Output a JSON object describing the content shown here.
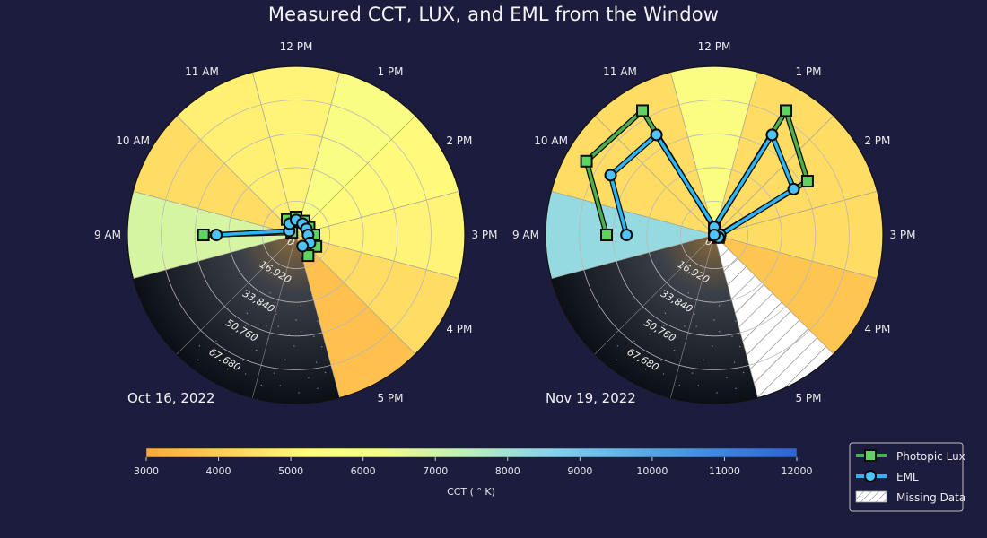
{
  "title": "Measured CCT, LUX, and EML from the Window",
  "colors": {
    "background": "#1c1c3f",
    "lux_line": "#4caf50",
    "lux_marker": "#5fd35f",
    "eml_line": "#29b6f6",
    "eml_marker": "#4fc3f7",
    "grid": "#b8b8b8",
    "cct_scale": [
      "#ffa83c",
      "#ffd15a",
      "#fffe7f",
      "#eefb8c",
      "#b9eebe",
      "#87d2ee",
      "#5caee6",
      "#3f87e0",
      "#2f63d6"
    ]
  },
  "chart_data": [
    {
      "type": "polar-bar",
      "date_label": "Oct 16, 2022",
      "theta_labels": [
        "12 PM",
        "1 PM",
        "2 PM",
        "3 PM",
        "4 PM",
        "5 PM",
        "9 AM",
        "10 AM",
        "11 AM"
      ],
      "r_tick_labels": [
        "0",
        "16,920",
        "33,840",
        "50,760",
        "67,680"
      ],
      "r_max": 84600,
      "sectors": [
        {
          "hour": "9 AM",
          "cct": 6900
        },
        {
          "hour": "10 AM",
          "cct": 4400
        },
        {
          "hour": "11 AM",
          "cct": 4900
        },
        {
          "hour": "12 PM",
          "cct": 5000
        },
        {
          "hour": "1 PM",
          "cct": 5600
        },
        {
          "hour": "2 PM",
          "cct": 5150
        },
        {
          "hour": "3 PM",
          "cct": 5000
        },
        {
          "hour": "4 PM",
          "cct": 4400
        },
        {
          "hour": "5 PM",
          "cct": 3650
        }
      ],
      "series": [
        {
          "name": "Photopic Lux",
          "values": [
            46500,
            2500,
            9000,
            9000,
            8000,
            7500,
            9000,
            11500,
            12000
          ]
        },
        {
          "name": "EML",
          "values": [
            40000,
            4000,
            6500,
            7500,
            6500,
            6000,
            6000,
            8000,
            6500
          ]
        }
      ]
    },
    {
      "type": "polar-bar",
      "date_label": "Nov 19, 2022",
      "theta_labels": [
        "12 PM",
        "1 PM",
        "2 PM",
        "3 PM",
        "4 PM",
        "5 PM",
        "9 AM",
        "10 AM",
        "11 AM"
      ],
      "r_tick_labels": [
        "0",
        "16,920",
        "33,840",
        "50,760",
        "67,680"
      ],
      "r_max": 84600,
      "sectors": [
        {
          "hour": "9 AM",
          "cct": 8300
        },
        {
          "hour": "10 AM",
          "cct": 4400
        },
        {
          "hour": "11 AM",
          "cct": 4400
        },
        {
          "hour": "12 PM",
          "cct": 5500
        },
        {
          "hour": "1 PM",
          "cct": 4400
        },
        {
          "hour": "2 PM",
          "cct": 4400
        },
        {
          "hour": "3 PM",
          "cct": 4400
        },
        {
          "hour": "4 PM",
          "cct": 3800
        },
        {
          "hour": "5 PM",
          "cct": null
        }
      ],
      "series": [
        {
          "name": "Photopic Lux",
          "values": [
            54000,
            74000,
            72000,
            3500,
            72000,
            54000,
            2500,
            2500,
            0
          ]
        },
        {
          "name": "EML",
          "values": [
            44000,
            60000,
            58000,
            4000,
            58000,
            46000,
            3000,
            2500,
            0
          ]
        }
      ]
    }
  ],
  "colorbar": {
    "min": 3000,
    "max": 12000,
    "ticks": [
      "3000",
      "4000",
      "5000",
      "6000",
      "7000",
      "8000",
      "9000",
      "10000",
      "11000",
      "12000"
    ],
    "label": "CCT ( ° K)"
  },
  "legend": {
    "items": [
      "Photopic Lux",
      "EML",
      "Missing Data"
    ]
  }
}
